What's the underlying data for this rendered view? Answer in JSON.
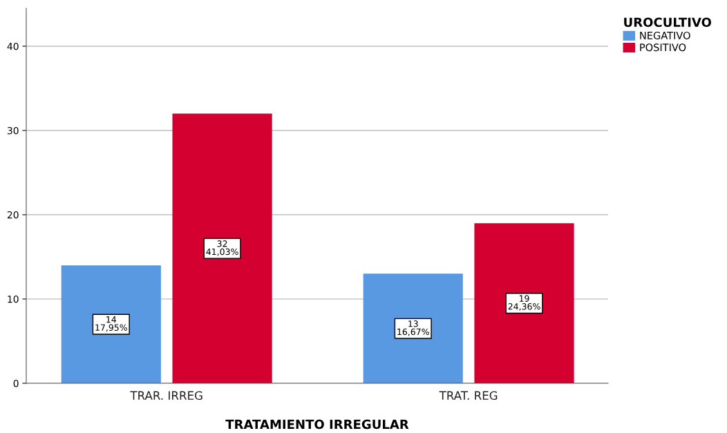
{
  "chart_data": {
    "type": "bar",
    "xlabel": "TRATAMIENTO IRREGULAR",
    "legend_title": "UROCULTIVO",
    "categories": [
      "TRAR. IRREG",
      "TRAT. REG"
    ],
    "series": [
      {
        "name": "NEGATIVO",
        "color": "#5899e2",
        "values": [
          14,
          13
        ],
        "value_labels": [
          "14\n17,95%",
          "13\n16,67%"
        ]
      },
      {
        "name": "POSITIVO",
        "color": "#d4002f",
        "values": [
          32,
          19
        ],
        "value_labels": [
          "32\n41,03%",
          "19\n24,36%"
        ]
      }
    ],
    "ylim": [
      0,
      44.5
    ],
    "yticks": [
      0,
      10,
      20,
      30,
      40
    ],
    "grid": "y",
    "legend": "top right"
  }
}
